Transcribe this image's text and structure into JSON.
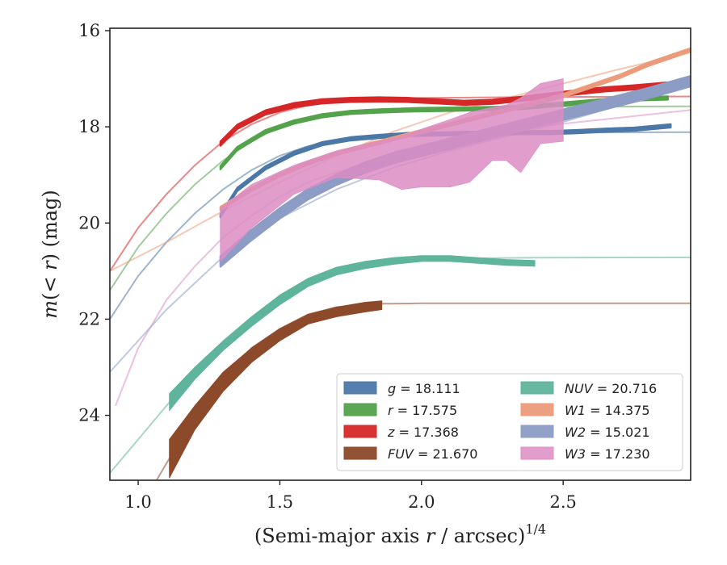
{
  "chart_data": {
    "type": "line",
    "title": "",
    "xlabel": "(Semi-major axis r / arcsec)^{1/4}",
    "ylabel": "m(< r) (mag)",
    "xlim": [
      0.9,
      2.95
    ],
    "ylim": [
      25.35,
      15.95
    ],
    "y_inverted": true,
    "x_ticks": [
      "1.0",
      "1.5",
      "2.0",
      "2.5"
    ],
    "y_ticks": [
      "16",
      "18",
      "20",
      "22",
      "24"
    ],
    "grid": false,
    "legend_position": "lower-right",
    "legend_columns": 2,
    "series": [
      {
        "name": "g = 18.111",
        "band": "g",
        "total": "18.111",
        "color": "#4c78a8",
        "data_x": [
          1.29,
          1.35,
          1.45,
          1.55,
          1.65,
          1.75,
          1.85,
          1.95,
          2.05,
          2.15,
          2.25,
          2.35,
          2.45,
          2.55,
          2.65,
          2.75,
          2.88
        ],
        "data_y": [
          19.85,
          19.3,
          18.85,
          18.55,
          18.35,
          18.25,
          18.2,
          18.16,
          18.15,
          18.14,
          18.13,
          18.12,
          18.12,
          18.1,
          18.07,
          18.05,
          17.98
        ],
        "model_x": [
          0.9,
          1.0,
          1.1,
          1.2,
          1.3,
          1.4,
          1.5,
          1.6,
          1.8,
          2.0,
          2.4,
          2.95
        ],
        "model_y": [
          22.0,
          21.1,
          20.4,
          19.8,
          19.3,
          18.9,
          18.6,
          18.4,
          18.2,
          18.15,
          18.12,
          18.11
        ],
        "data_band": 0.07
      },
      {
        "name": "r = 17.575",
        "band": "r",
        "total": "17.575",
        "color": "#54a24b",
        "data_x": [
          1.29,
          1.35,
          1.45,
          1.55,
          1.65,
          1.75,
          1.85,
          1.95,
          2.05,
          2.15,
          2.25,
          2.35,
          2.45,
          2.55,
          2.65,
          2.75,
          2.87
        ],
        "data_y": [
          18.85,
          18.45,
          18.1,
          17.9,
          17.77,
          17.7,
          17.67,
          17.65,
          17.64,
          17.63,
          17.62,
          17.6,
          17.55,
          17.5,
          17.45,
          17.42,
          17.4
        ],
        "model_x": [
          0.9,
          1.0,
          1.1,
          1.2,
          1.3,
          1.4,
          1.5,
          1.6,
          1.8,
          2.0,
          2.4,
          2.95
        ],
        "model_y": [
          21.4,
          20.5,
          19.8,
          19.2,
          18.7,
          18.3,
          18.0,
          17.8,
          17.65,
          17.6,
          17.58,
          17.575
        ],
        "data_band": 0.07
      },
      {
        "name": "z = 17.368",
        "band": "z",
        "total": "17.368",
        "color": "#d62728",
        "data_x": [
          1.29,
          1.35,
          1.45,
          1.55,
          1.65,
          1.75,
          1.85,
          1.95,
          2.05,
          2.15,
          2.25,
          2.35,
          2.45,
          2.55,
          2.65,
          2.75,
          2.87
        ],
        "data_y": [
          18.35,
          18.0,
          17.7,
          17.55,
          17.47,
          17.44,
          17.43,
          17.44,
          17.47,
          17.5,
          17.48,
          17.42,
          17.35,
          17.28,
          17.22,
          17.18,
          17.12
        ],
        "model_x": [
          0.9,
          1.0,
          1.1,
          1.2,
          1.3,
          1.4,
          1.5,
          1.6,
          1.8,
          2.0,
          2.4,
          2.95
        ],
        "model_y": [
          21.0,
          20.1,
          19.4,
          18.8,
          18.3,
          17.95,
          17.7,
          17.55,
          17.43,
          17.4,
          17.38,
          17.368
        ],
        "data_band": 0.09
      },
      {
        "name": "FUV = 21.670",
        "band": "FUV",
        "total": "21.670",
        "color": "#8c4a2a",
        "data_x": [
          1.11,
          1.2,
          1.3,
          1.4,
          1.5,
          1.6,
          1.7,
          1.8,
          1.86
        ],
        "data_lo": [
          24.5,
          23.8,
          23.1,
          22.6,
          22.2,
          21.9,
          21.75,
          21.65,
          21.62
        ],
        "data_hi": [
          25.3,
          24.3,
          23.5,
          22.9,
          22.45,
          22.1,
          21.95,
          21.85,
          21.8
        ],
        "model_x": [
          1.0,
          1.1,
          1.2,
          1.3,
          1.4,
          1.5,
          1.6,
          1.7,
          1.85,
          2.0,
          2.5,
          2.95
        ],
        "model_y": [
          26.0,
          25.0,
          24.0,
          23.2,
          22.6,
          22.2,
          21.9,
          21.75,
          21.68,
          21.67,
          21.67,
          21.67
        ]
      },
      {
        "name": "NUV = 20.716",
        "band": "NUV",
        "total": "20.716",
        "color": "#5fb49c",
        "data_x": [
          1.11,
          1.2,
          1.3,
          1.4,
          1.5,
          1.6,
          1.7,
          1.8,
          1.9,
          2.0,
          2.1,
          2.2,
          2.3,
          2.4
        ],
        "data_lo": [
          23.55,
          23.0,
          22.45,
          21.95,
          21.5,
          21.15,
          20.92,
          20.8,
          20.72,
          20.68,
          20.68,
          20.72,
          20.76,
          20.78
        ],
        "data_hi": [
          23.9,
          23.25,
          22.65,
          22.15,
          21.7,
          21.32,
          21.08,
          20.95,
          20.86,
          20.8,
          20.8,
          20.84,
          20.88,
          20.9
        ],
        "model_x": [
          0.9,
          1.0,
          1.1,
          1.2,
          1.3,
          1.4,
          1.5,
          1.6,
          1.7,
          1.8,
          2.0,
          2.4,
          2.95
        ],
        "model_y": [
          25.2,
          24.5,
          23.8,
          23.1,
          22.5,
          22.0,
          21.55,
          21.2,
          21.0,
          20.85,
          20.75,
          20.72,
          20.716
        ]
      },
      {
        "name": "W1 = 14.375",
        "band": "W1",
        "total": "14.375",
        "color": "#ec9b7a",
        "data_x": [
          1.29,
          1.4,
          1.5,
          1.6,
          1.7,
          1.8,
          1.9,
          2.0,
          2.1,
          2.2,
          2.3,
          2.4,
          2.5,
          2.6,
          2.7,
          2.8,
          2.95
        ],
        "data_y": [
          19.7,
          19.3,
          19.0,
          18.75,
          18.55,
          18.4,
          18.25,
          18.1,
          17.95,
          17.8,
          17.65,
          17.5,
          17.35,
          17.15,
          16.95,
          16.7,
          16.4
        ],
        "model_x": [
          0.9,
          1.1,
          1.3,
          1.5,
          1.7,
          1.9,
          2.1,
          2.3,
          2.5,
          2.7,
          2.95
        ],
        "model_y": [
          21.0,
          20.4,
          19.75,
          19.15,
          18.6,
          18.1,
          17.7,
          17.4,
          17.1,
          16.8,
          16.45
        ],
        "data_band": 0.07
      },
      {
        "name": "W2 = 15.021",
        "band": "W2",
        "total": "15.021",
        "color": "#8c9cc4",
        "data_x": [
          1.29,
          1.4,
          1.5,
          1.6,
          1.7,
          1.8,
          1.9,
          2.0,
          2.1,
          2.2,
          2.3,
          2.4,
          2.5,
          2.6,
          2.7,
          2.8,
          2.95
        ],
        "data_y": [
          20.8,
          20.25,
          19.8,
          19.4,
          19.1,
          18.85,
          18.65,
          18.5,
          18.35,
          18.2,
          18.05,
          17.9,
          17.75,
          17.6,
          17.45,
          17.3,
          17.05
        ],
        "model_x": [
          0.9,
          1.1,
          1.3,
          1.5,
          1.7,
          1.9,
          2.1,
          2.3,
          2.5,
          2.7,
          2.95
        ],
        "model_y": [
          23.1,
          21.8,
          20.7,
          19.9,
          19.3,
          18.85,
          18.5,
          18.2,
          17.9,
          17.55,
          17.1
        ],
        "data_band": 0.22
      },
      {
        "name": "W3 = 17.230",
        "band": "W3",
        "total": "17.230",
        "color": "#dc8dc4",
        "data_x": [
          1.29,
          1.4,
          1.55,
          1.7,
          1.85,
          1.93,
          2.0,
          2.1,
          2.17,
          2.25,
          2.3,
          2.35,
          2.42,
          2.5
        ],
        "data_lo": [
          20.8,
          20.1,
          19.4,
          19.05,
          19.1,
          19.3,
          19.25,
          19.25,
          19.15,
          18.7,
          18.7,
          18.95,
          18.35,
          18.3
        ],
        "data_hi": [
          19.7,
          19.2,
          18.8,
          18.5,
          18.3,
          18.2,
          18.05,
          17.85,
          17.7,
          17.6,
          17.55,
          17.4,
          17.1,
          17.0
        ],
        "model_x": [
          0.92,
          1.0,
          1.1,
          1.2,
          1.3,
          1.4,
          1.5,
          1.6,
          1.8,
          2.0,
          2.4,
          2.95
        ],
        "model_y": [
          23.8,
          22.6,
          21.6,
          20.9,
          20.3,
          19.85,
          19.45,
          19.15,
          18.75,
          18.45,
          18.0,
          17.65
        ]
      }
    ]
  }
}
